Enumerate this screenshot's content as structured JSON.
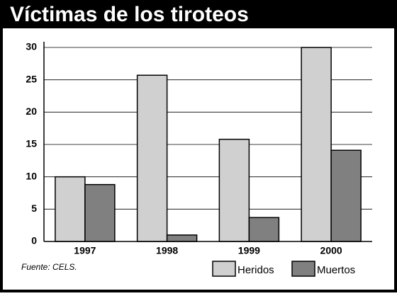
{
  "chart_data": {
    "type": "bar",
    "title": "Víctimas de los tiroteos",
    "categories": [
      "1997",
      "1998",
      "1999",
      "2000"
    ],
    "series": [
      {
        "name": "Heridos",
        "color": "#d0d0d0",
        "values": [
          10,
          25.7,
          15.8,
          30
        ]
      },
      {
        "name": "Muertos",
        "color": "#808080",
        "values": [
          8.8,
          1,
          3.7,
          14.1
        ]
      }
    ],
    "ylim": [
      0,
      30
    ],
    "yticks": [
      0,
      5,
      10,
      15,
      20,
      25,
      30
    ],
    "grid": true,
    "source": "Fuente: CELS."
  }
}
